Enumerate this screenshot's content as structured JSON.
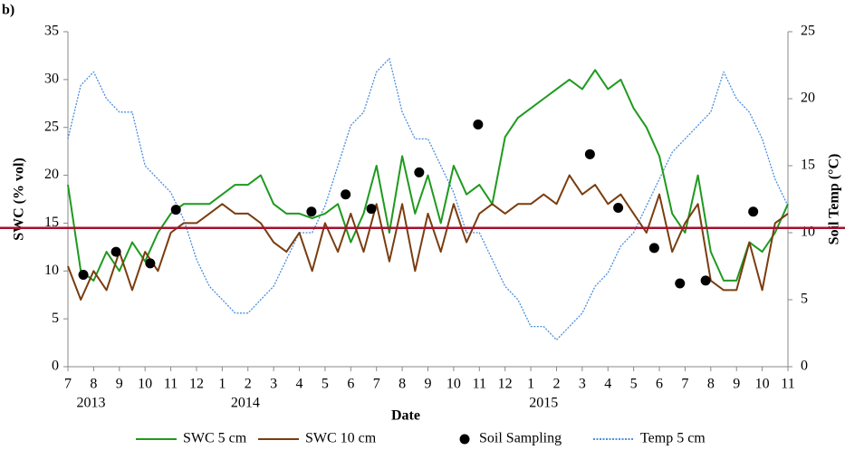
{
  "chart_data": {
    "type": "line",
    "panel_label": "b)",
    "xlabel": "Date",
    "ylabel": "SWC (% vol)",
    "y2label": "Soil Temp (°C)",
    "x": [
      0,
      0.5,
      1,
      1.5,
      2,
      2.5,
      3,
      3.5,
      4,
      4.5,
      5,
      5.5,
      6,
      6.5,
      7,
      7.5,
      8,
      8.5,
      9,
      9.5,
      10,
      10.5,
      11,
      11.5,
      12,
      12.5,
      13,
      13.5,
      14,
      14.5,
      15,
      15.5,
      16,
      16.5,
      17,
      17.5,
      18,
      18.5,
      19,
      19.5,
      20,
      20.5,
      21,
      21.5,
      22,
      22.5,
      23,
      23.5,
      24,
      24.5,
      25,
      25.5,
      26,
      26.5,
      27,
      27.5,
      28
    ],
    "xlim": [
      0,
      28
    ],
    "xticks": [
      {
        "value": 0,
        "label": "7"
      },
      {
        "value": 1,
        "label": "8"
      },
      {
        "value": 2,
        "label": "9"
      },
      {
        "value": 3,
        "label": "10"
      },
      {
        "value": 4,
        "label": "11"
      },
      {
        "value": 5,
        "label": "12"
      },
      {
        "value": 6,
        "label": "1"
      },
      {
        "value": 7,
        "label": "2"
      },
      {
        "value": 8,
        "label": "3"
      },
      {
        "value": 9,
        "label": "4"
      },
      {
        "value": 10,
        "label": "5"
      },
      {
        "value": 11,
        "label": "6"
      },
      {
        "value": 12,
        "label": "7"
      },
      {
        "value": 13,
        "label": "8"
      },
      {
        "value": 14,
        "label": "9"
      },
      {
        "value": 15,
        "label": "10"
      },
      {
        "value": 16,
        "label": "11"
      },
      {
        "value": 17,
        "label": "12"
      },
      {
        "value": 18,
        "label": "1"
      },
      {
        "value": 19,
        "label": "2"
      },
      {
        "value": 20,
        "label": "3"
      },
      {
        "value": 21,
        "label": "4"
      },
      {
        "value": 22,
        "label": "5"
      },
      {
        "value": 23,
        "label": "6"
      },
      {
        "value": 24,
        "label": "7"
      },
      {
        "value": 25,
        "label": "8"
      },
      {
        "value": 26,
        "label": "9"
      },
      {
        "value": 27,
        "label": "10"
      },
      {
        "value": 28,
        "label": "11"
      }
    ],
    "year_labels": [
      "2013",
      "2014",
      "2015"
    ],
    "ylim": [
      0,
      35
    ],
    "yticks": [
      0,
      5,
      10,
      15,
      20,
      25,
      30,
      35
    ],
    "y2lim": [
      0,
      25
    ],
    "y2ticks": [
      0,
      5,
      10,
      15,
      20,
      25
    ],
    "hline": {
      "value": 14.5,
      "color": "#a3122f"
    },
    "legend": "bottom",
    "series": [
      {
        "name": "SWC 5 cm",
        "color": "#1e9a1e",
        "style": "line",
        "values": [
          19,
          10,
          9,
          12,
          10,
          13,
          11,
          14,
          16,
          17,
          17,
          17,
          18,
          19,
          19,
          20,
          17,
          16,
          16,
          15.5,
          16,
          17,
          13,
          16,
          21,
          14,
          22,
          16,
          20,
          15,
          21,
          18,
          19,
          17,
          24,
          26,
          27,
          28,
          29,
          30,
          29,
          31,
          29,
          30,
          27,
          25,
          22,
          16,
          14,
          20,
          12,
          9,
          9,
          13,
          12,
          14,
          17
        ]
      },
      {
        "name": "SWC 10 cm",
        "color": "#7a3d0f",
        "style": "line",
        "values": [
          10.5,
          7,
          10,
          8,
          12,
          8,
          12,
          10,
          14,
          15,
          15,
          16,
          17,
          16,
          16,
          15,
          13,
          12,
          14,
          10,
          15,
          12,
          16,
          12,
          17,
          11,
          17,
          10,
          16,
          12,
          17,
          13,
          16,
          17,
          16,
          17,
          17,
          18,
          17,
          20,
          18,
          19,
          17,
          18,
          16,
          14,
          18,
          12,
          15,
          17,
          9,
          8,
          8,
          13,
          8,
          15,
          16
        ]
      },
      {
        "name": "Soil Sampling",
        "color": "#000000",
        "style": "scatter",
        "x": [
          0.6,
          1.87,
          3.2,
          4.2,
          9.47,
          10.8,
          11.8,
          13.66,
          15.95,
          20.3,
          21.4,
          22.8,
          23.8,
          24.8,
          26.65
        ],
        "values": [
          9.6,
          12,
          10.8,
          16.4,
          16.2,
          18,
          16.5,
          20.3,
          25.3,
          22.2,
          16.6,
          12.4,
          8.7,
          9,
          16.2
        ]
      },
      {
        "name": "Temp 5 cm",
        "color": "#4a8fdc",
        "style": "dotted",
        "axis": "y2",
        "values": [
          17,
          21,
          22,
          20,
          19,
          19,
          15,
          14,
          13,
          11,
          8,
          6,
          5,
          4,
          4,
          5,
          6,
          8,
          10,
          10,
          12,
          15,
          18,
          19,
          22,
          23,
          19,
          17,
          17,
          15,
          13,
          10,
          10,
          8,
          6,
          5,
          3,
          3,
          2,
          3,
          4,
          6,
          7,
          9,
          10,
          12,
          14,
          16,
          17,
          18,
          19,
          22,
          20,
          19,
          17,
          14,
          12
        ]
      }
    ]
  }
}
